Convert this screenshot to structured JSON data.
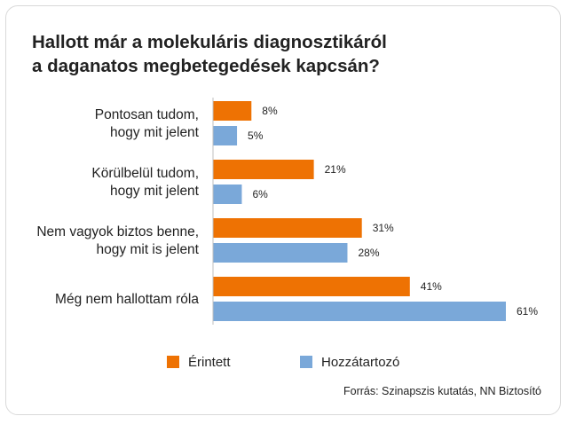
{
  "colors": {
    "series1": "#ee7203",
    "series2": "#7aa8d9"
  },
  "chart_data": {
    "type": "bar",
    "orientation": "horizontal",
    "title": [
      "Hallott már a molekuláris diagnosztikáról",
      "a daganatos megbetegedések kapcsán?"
    ],
    "categories": [
      [
        "Pontosan tudom,",
        "hogy mit jelent"
      ],
      [
        "Körülbelül tudom,",
        "hogy mit jelent"
      ],
      [
        "Nem vagyok biztos benne,",
        "hogy mit is jelent"
      ],
      [
        "Még nem hallottam róla"
      ]
    ],
    "series": [
      {
        "name": "Érintett",
        "values": [
          8,
          21,
          31,
          41
        ],
        "labels": [
          "8%",
          "21%",
          "31%",
          "41%"
        ]
      },
      {
        "name": "Hozzátartozó",
        "values": [
          5,
          6,
          28,
          61
        ],
        "labels": [
          "5%",
          "6%",
          "28%",
          "61%"
        ]
      }
    ],
    "unit": "%",
    "xlim": [
      0,
      61
    ],
    "grid": false,
    "legend_position": "bottom"
  },
  "source": "Forrás: Szinapszis kutatás, NN Biztosító"
}
